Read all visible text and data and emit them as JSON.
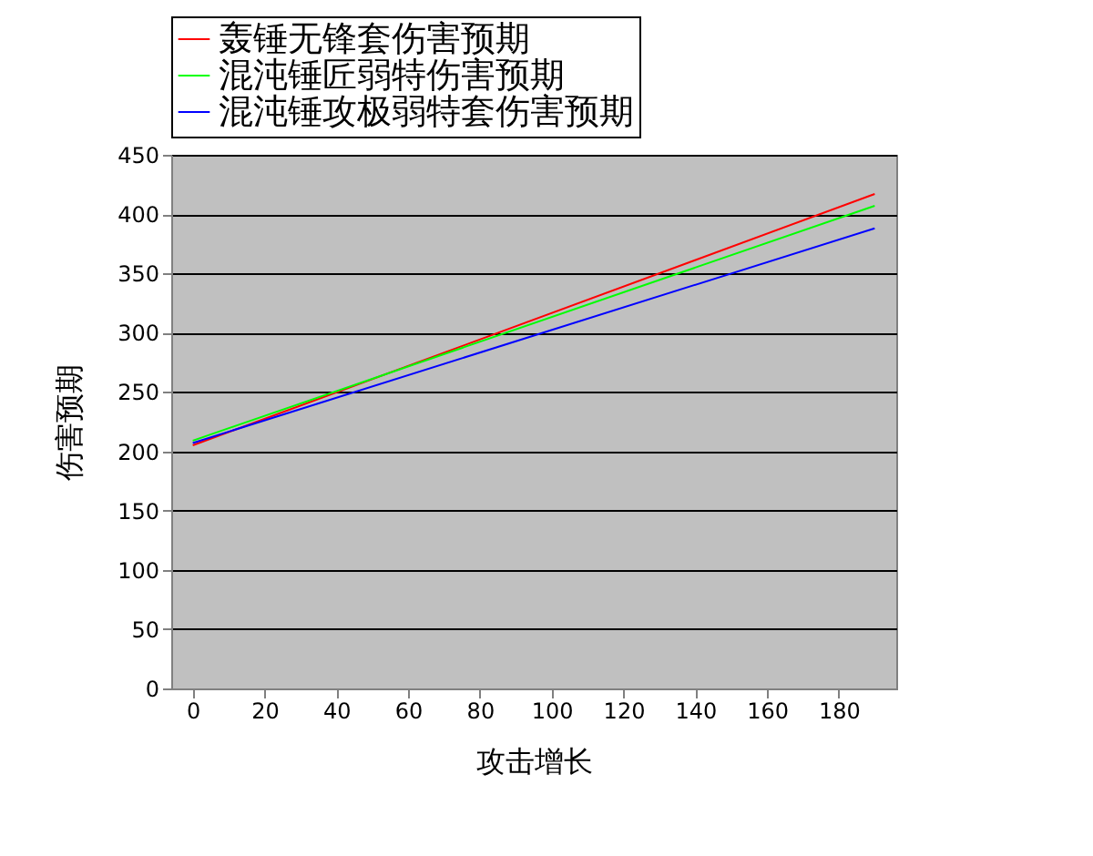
{
  "chart_data": {
    "type": "line",
    "xlabel": "攻击增长",
    "ylabel": "伤害预期",
    "x": [
      0,
      190
    ],
    "series": [
      {
        "name": "轰锤无锋套伤害预期",
        "color": "#ff0000",
        "values": [
          205,
          417
        ]
      },
      {
        "name": "混沌锤匠弱特伤害预期",
        "color": "#00ff00",
        "values": [
          209,
          407
        ]
      },
      {
        "name": "混沌锤攻极弱特套伤害预期",
        "color": "#0000ff",
        "values": [
          207,
          388
        ]
      }
    ],
    "xlim": [
      -6,
      196
    ],
    "xticks": [
      0,
      20,
      40,
      60,
      80,
      100,
      120,
      140,
      160,
      180
    ],
    "ylim": [
      0,
      450
    ],
    "yticks": [
      0,
      50,
      100,
      150,
      200,
      250,
      300,
      350,
      400,
      450
    ],
    "grid": "y",
    "legend": "top",
    "marker": "none",
    "line_style": "solid"
  }
}
